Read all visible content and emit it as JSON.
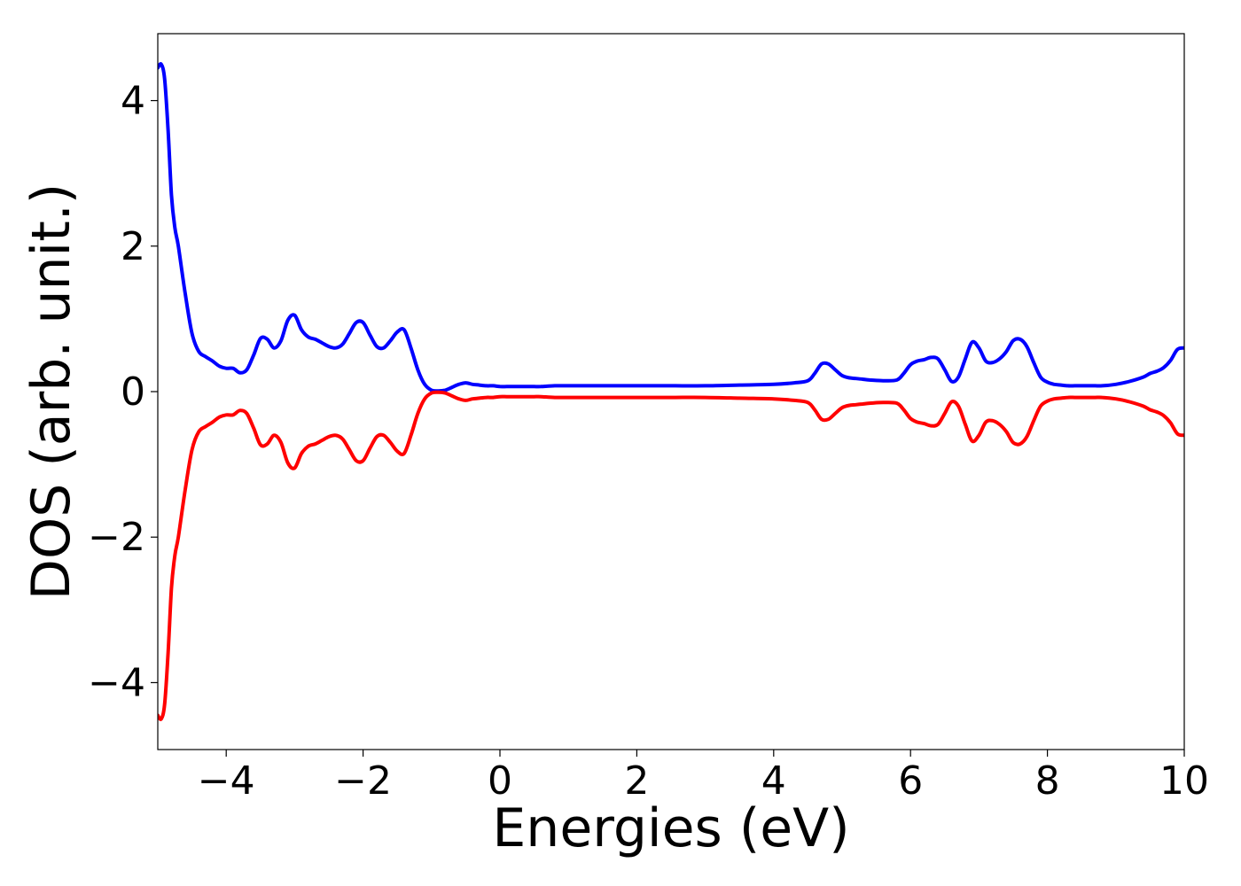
{
  "chart_data": {
    "type": "line",
    "title": "",
    "xlabel": "Energies (eV)",
    "ylabel": "DOS (arb. unit.)",
    "xlim": [
      -5,
      10
    ],
    "ylim": [
      -4.92,
      4.92
    ],
    "xticks": [
      -4,
      -2,
      0,
      2,
      4,
      6,
      8,
      10
    ],
    "xtick_labels": [
      "−4",
      "−2",
      "0",
      "2",
      "4",
      "6",
      "8",
      "10"
    ],
    "yticks": [
      -4,
      -2,
      0,
      2,
      4
    ],
    "ytick_labels": [
      "−4",
      "−2",
      "0",
      "2",
      "4"
    ],
    "grid": false,
    "legend": "none",
    "series": [
      {
        "color": "#0000ff",
        "x": [
          -5.0,
          -4.95,
          -4.9,
          -4.85,
          -4.8,
          -4.75,
          -4.7,
          -4.6,
          -4.5,
          -4.4,
          -4.3,
          -4.2,
          -4.1,
          -4.0,
          -3.9,
          -3.8,
          -3.7,
          -3.6,
          -3.5,
          -3.4,
          -3.3,
          -3.2,
          -3.1,
          -3.0,
          -2.9,
          -2.8,
          -2.7,
          -2.6,
          -2.5,
          -2.4,
          -2.3,
          -2.2,
          -2.1,
          -2.0,
          -1.9,
          -1.8,
          -1.7,
          -1.6,
          -1.5,
          -1.4,
          -1.3,
          -1.2,
          -1.1,
          -1.0,
          -0.9,
          -0.8,
          -0.7,
          -0.6,
          -0.5,
          -0.4,
          -0.3,
          -0.2,
          -0.1,
          0.0,
          0.1,
          0.2,
          0.3,
          0.4,
          0.5,
          0.6,
          0.8,
          1.0,
          1.5,
          2.0,
          2.5,
          3.0,
          3.5,
          4.0,
          4.3,
          4.5,
          4.6,
          4.7,
          4.8,
          4.9,
          5.0,
          5.1,
          5.2,
          5.3,
          5.4,
          5.6,
          5.8,
          5.9,
          6.0,
          6.1,
          6.2,
          6.3,
          6.4,
          6.5,
          6.6,
          6.7,
          6.8,
          6.9,
          7.0,
          7.1,
          7.2,
          7.3,
          7.4,
          7.5,
          7.6,
          7.7,
          7.8,
          7.9,
          8.0,
          8.1,
          8.2,
          8.3,
          8.4,
          8.5,
          8.6,
          8.7,
          8.8,
          9.0,
          9.2,
          9.4,
          9.5,
          9.6,
          9.7,
          9.8,
          9.9,
          10.0
        ],
        "y": [
          4.45,
          4.5,
          4.3,
          3.6,
          2.7,
          2.25,
          2.0,
          1.35,
          0.8,
          0.55,
          0.48,
          0.42,
          0.35,
          0.32,
          0.32,
          0.26,
          0.3,
          0.5,
          0.73,
          0.72,
          0.6,
          0.7,
          0.98,
          1.05,
          0.85,
          0.75,
          0.72,
          0.67,
          0.62,
          0.6,
          0.65,
          0.8,
          0.95,
          0.95,
          0.78,
          0.62,
          0.6,
          0.7,
          0.82,
          0.85,
          0.6,
          0.3,
          0.1,
          0.02,
          0.01,
          0.02,
          0.06,
          0.1,
          0.12,
          0.1,
          0.09,
          0.08,
          0.08,
          0.07,
          0.07,
          0.07,
          0.07,
          0.07,
          0.07,
          0.07,
          0.08,
          0.08,
          0.08,
          0.08,
          0.08,
          0.08,
          0.09,
          0.1,
          0.12,
          0.15,
          0.25,
          0.38,
          0.38,
          0.3,
          0.22,
          0.19,
          0.18,
          0.17,
          0.16,
          0.15,
          0.16,
          0.25,
          0.37,
          0.42,
          0.44,
          0.47,
          0.45,
          0.3,
          0.14,
          0.2,
          0.45,
          0.68,
          0.6,
          0.42,
          0.4,
          0.45,
          0.55,
          0.7,
          0.72,
          0.62,
          0.4,
          0.2,
          0.13,
          0.1,
          0.09,
          0.08,
          0.08,
          0.08,
          0.08,
          0.08,
          0.08,
          0.1,
          0.14,
          0.2,
          0.25,
          0.28,
          0.33,
          0.43,
          0.58,
          0.6
        ]
      },
      {
        "color": "#ff0000",
        "x": [
          -5.0,
          -4.95,
          -4.9,
          -4.85,
          -4.8,
          -4.75,
          -4.7,
          -4.6,
          -4.5,
          -4.4,
          -4.3,
          -4.2,
          -4.1,
          -4.0,
          -3.9,
          -3.8,
          -3.7,
          -3.6,
          -3.5,
          -3.4,
          -3.3,
          -3.2,
          -3.1,
          -3.0,
          -2.9,
          -2.8,
          -2.7,
          -2.6,
          -2.5,
          -2.4,
          -2.3,
          -2.2,
          -2.1,
          -2.0,
          -1.9,
          -1.8,
          -1.7,
          -1.6,
          -1.5,
          -1.4,
          -1.3,
          -1.2,
          -1.1,
          -1.0,
          -0.9,
          -0.8,
          -0.7,
          -0.6,
          -0.5,
          -0.4,
          -0.3,
          -0.2,
          -0.1,
          0.0,
          0.1,
          0.2,
          0.3,
          0.4,
          0.5,
          0.6,
          0.8,
          1.0,
          1.5,
          2.0,
          2.5,
          3.0,
          3.5,
          4.0,
          4.3,
          4.5,
          4.6,
          4.7,
          4.8,
          4.9,
          5.0,
          5.1,
          5.2,
          5.3,
          5.4,
          5.6,
          5.8,
          5.9,
          6.0,
          6.1,
          6.2,
          6.3,
          6.4,
          6.5,
          6.6,
          6.7,
          6.8,
          6.9,
          7.0,
          7.1,
          7.2,
          7.3,
          7.4,
          7.5,
          7.6,
          7.7,
          7.8,
          7.9,
          8.0,
          8.1,
          8.2,
          8.3,
          8.4,
          8.5,
          8.6,
          8.7,
          8.8,
          9.0,
          9.2,
          9.4,
          9.5,
          9.6,
          9.7,
          9.8,
          9.9,
          10.0
        ],
        "y": [
          -4.45,
          -4.5,
          -4.3,
          -3.6,
          -2.7,
          -2.25,
          -2.0,
          -1.35,
          -0.8,
          -0.55,
          -0.48,
          -0.42,
          -0.35,
          -0.32,
          -0.32,
          -0.26,
          -0.3,
          -0.5,
          -0.73,
          -0.72,
          -0.6,
          -0.7,
          -0.98,
          -1.05,
          -0.85,
          -0.75,
          -0.72,
          -0.67,
          -0.62,
          -0.6,
          -0.65,
          -0.8,
          -0.95,
          -0.95,
          -0.78,
          -0.62,
          -0.6,
          -0.7,
          -0.82,
          -0.85,
          -0.6,
          -0.3,
          -0.1,
          -0.02,
          -0.01,
          -0.02,
          -0.06,
          -0.1,
          -0.12,
          -0.1,
          -0.09,
          -0.08,
          -0.08,
          -0.07,
          -0.07,
          -0.07,
          -0.07,
          -0.07,
          -0.07,
          -0.07,
          -0.08,
          -0.08,
          -0.08,
          -0.08,
          -0.08,
          -0.08,
          -0.09,
          -0.1,
          -0.12,
          -0.15,
          -0.25,
          -0.38,
          -0.38,
          -0.3,
          -0.22,
          -0.19,
          -0.18,
          -0.17,
          -0.16,
          -0.15,
          -0.16,
          -0.25,
          -0.37,
          -0.42,
          -0.44,
          -0.47,
          -0.45,
          -0.3,
          -0.14,
          -0.2,
          -0.45,
          -0.68,
          -0.6,
          -0.42,
          -0.4,
          -0.45,
          -0.55,
          -0.7,
          -0.72,
          -0.62,
          -0.4,
          -0.2,
          -0.13,
          -0.1,
          -0.09,
          -0.08,
          -0.08,
          -0.08,
          -0.08,
          -0.08,
          -0.08,
          -0.1,
          -0.14,
          -0.2,
          -0.25,
          -0.28,
          -0.33,
          -0.43,
          -0.58,
          -0.6
        ]
      }
    ]
  }
}
